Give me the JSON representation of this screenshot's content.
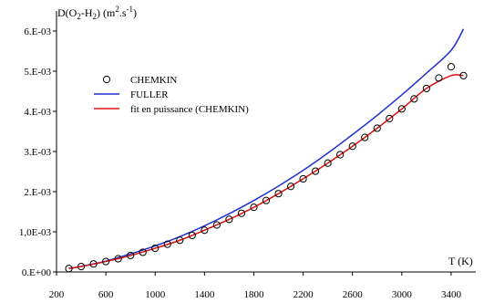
{
  "chart_data": {
    "type": "line",
    "title": "",
    "ylabel_parts": {
      "base": "D(O",
      "sub1": "2",
      "mid": "-H",
      "sub2": "2",
      "close": ") (m",
      "sup1": "2",
      "dot": ".s",
      "sup2": "-1",
      "end": ")"
    },
    "xlabel": "T (K)",
    "xlim": [
      200,
      3600
    ],
    "ylim": [
      0,
      0.0065
    ],
    "xticks": [
      200,
      600,
      1000,
      1400,
      1800,
      2200,
      2600,
      3000,
      3400
    ],
    "xtick_labels": [
      "200",
      "600",
      "1000",
      "1400",
      "1800",
      "2200",
      "2600",
      "3000",
      "3400"
    ],
    "yticks": [
      0,
      0.001,
      0.002,
      0.003,
      0.004,
      0.005,
      0.006
    ],
    "ytick_labels": [
      "0.E+00",
      "1,0E-03",
      "2.E-03",
      "3.E-03",
      "4.E-03",
      "5.E-03",
      "6.E-03"
    ],
    "grid": false,
    "legend_position": "upper-left",
    "series": [
      {
        "name": "CHEMKIN",
        "style": "markers",
        "color": "#000000",
        "x": [
          300,
          400,
          500,
          600,
          700,
          800,
          900,
          1000,
          1100,
          1200,
          1300,
          1400,
          1500,
          1600,
          1700,
          1800,
          1900,
          2000,
          2100,
          2200,
          2300,
          2400,
          2500,
          2600,
          2700,
          2800,
          2900,
          3000,
          3100,
          3200,
          3300,
          3400,
          3500
        ],
        "y": [
          8.5e-05,
          0.000135,
          0.0002,
          0.00026,
          0.00033,
          0.00041,
          0.00049,
          0.00059,
          0.00069,
          0.00079,
          0.00091,
          0.00104,
          0.00117,
          0.00131,
          0.00146,
          0.00161,
          0.00178,
          0.00195,
          0.00213,
          0.00232,
          0.00251,
          0.00271,
          0.00292,
          0.00313,
          0.00335,
          0.00358,
          0.00382,
          0.00406,
          0.00431,
          0.00457,
          0.00483,
          0.00511,
          0.00489
        ]
      },
      {
        "name": "FULLER",
        "style": "line",
        "color": "#1f2fd0",
        "x": [
          300,
          400,
          600,
          800,
          1000,
          1200,
          1400,
          1600,
          1800,
          2000,
          2200,
          2400,
          2600,
          2800,
          3000,
          3200,
          3400,
          3500
        ],
        "y": [
          9e-05,
          0.00014,
          0.00027,
          0.00045,
          0.00065,
          0.00088,
          0.00115,
          0.00145,
          0.00178,
          0.00214,
          0.00253,
          0.00296,
          0.00342,
          0.0039,
          0.00441,
          0.00495,
          0.00552,
          0.00605
        ]
      },
      {
        "name": "fit en puissance (CHEMKIN)",
        "style": "line",
        "color": "#e01010",
        "x": [
          300,
          400,
          600,
          800,
          1000,
          1200,
          1400,
          1600,
          1800,
          2000,
          2200,
          2400,
          2600,
          2800,
          3000,
          3200,
          3400,
          3500
        ],
        "y": [
          8.5e-05,
          0.000135,
          0.00026,
          0.00041,
          0.00059,
          0.00079,
          0.00104,
          0.00131,
          0.00161,
          0.00195,
          0.00232,
          0.00271,
          0.00313,
          0.00358,
          0.00406,
          0.00457,
          0.00489,
          0.00489
        ]
      }
    ]
  }
}
